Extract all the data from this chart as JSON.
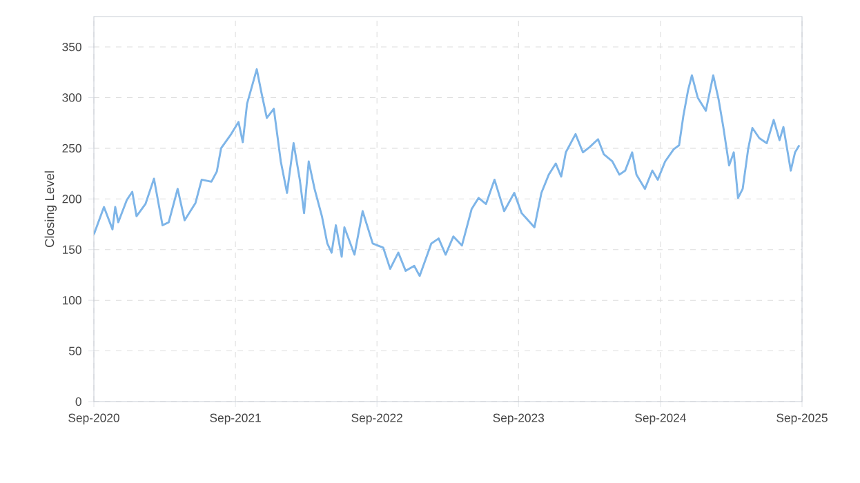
{
  "chart_data": {
    "type": "line",
    "ylabel": "Closing Level",
    "color": "#7eb5e8",
    "grid": true,
    "marker": "none",
    "line_style": "solid",
    "xlim": [
      "2020-09-01",
      "2025-09-01"
    ],
    "ylim": [
      0,
      380
    ],
    "xticks": [
      {
        "value": "2020-09-01",
        "label": "Sep-2020"
      },
      {
        "value": "2021-09-01",
        "label": "Sep-2021"
      },
      {
        "value": "2022-09-01",
        "label": "Sep-2022"
      },
      {
        "value": "2023-09-01",
        "label": "Sep-2023"
      },
      {
        "value": "2024-09-01",
        "label": "Sep-2024"
      },
      {
        "value": "2025-09-01",
        "label": "Sep-2025"
      }
    ],
    "yticks": [
      0,
      50,
      100,
      150,
      200,
      250,
      300,
      350
    ],
    "x": [
      "2020-09-01",
      "2020-09-27",
      "2020-10-19",
      "2020-10-26",
      "2020-11-03",
      "2020-11-25",
      "2020-12-09",
      "2020-12-20",
      "2021-01-12",
      "2021-02-03",
      "2021-02-25",
      "2021-03-13",
      "2021-04-05",
      "2021-04-23",
      "2021-05-21",
      "2021-06-06",
      "2021-07-01",
      "2021-07-15",
      "2021-07-26",
      "2021-08-21",
      "2021-09-09",
      "2021-09-20",
      "2021-10-01",
      "2021-10-26",
      "2021-11-07",
      "2021-11-21",
      "2021-12-09",
      "2021-12-27",
      "2022-01-12",
      "2022-01-29",
      "2022-02-14",
      "2022-02-25",
      "2022-03-09",
      "2022-03-24",
      "2022-04-12",
      "2022-04-26",
      "2022-05-07",
      "2022-05-18",
      "2022-06-02",
      "2022-06-09",
      "2022-07-05",
      "2022-07-26",
      "2022-08-21",
      "2022-09-17",
      "2022-10-05",
      "2022-10-26",
      "2022-11-14",
      "2022-12-06",
      "2022-12-20",
      "2023-01-19",
      "2023-02-07",
      "2023-02-25",
      "2023-03-17",
      "2023-04-08",
      "2023-05-03",
      "2023-05-21",
      "2023-06-09",
      "2023-07-01",
      "2023-07-26",
      "2023-08-21",
      "2023-09-09",
      "2023-10-12",
      "2023-10-30",
      "2023-11-18",
      "2023-12-06",
      "2023-12-20",
      "2024-01-01",
      "2024-01-26",
      "2024-02-14",
      "2024-03-02",
      "2024-03-24",
      "2024-04-08",
      "2024-04-30",
      "2024-05-18",
      "2024-06-02",
      "2024-06-20",
      "2024-07-01",
      "2024-07-23",
      "2024-08-11",
      "2024-08-25",
      "2024-09-13",
      "2024-10-05",
      "2024-10-19",
      "2024-10-30",
      "2024-11-11",
      "2024-11-21",
      "2024-12-06",
      "2024-12-27",
      "2025-01-15",
      "2025-01-29",
      "2025-02-10",
      "2025-02-25",
      "2025-03-09",
      "2025-03-20",
      "2025-04-01",
      "2025-04-15",
      "2025-04-26",
      "2025-05-14",
      "2025-06-02",
      "2025-06-20",
      "2025-07-05",
      "2025-07-15",
      "2025-08-03",
      "2025-08-14",
      "2025-08-25"
    ],
    "values": [
      165,
      192,
      170,
      192,
      177,
      199,
      207,
      183,
      195,
      220,
      174,
      177,
      210,
      179,
      196,
      219,
      217,
      227,
      250,
      264,
      276,
      256,
      294,
      328,
      305,
      280,
      289,
      237,
      206,
      255,
      219,
      186,
      237,
      210,
      183,
      156,
      147,
      174,
      143,
      172,
      145,
      188,
      156,
      152,
      131,
      147,
      129,
      134,
      124,
      156,
      161,
      145,
      163,
      154,
      190,
      201,
      195,
      219,
      188,
      206,
      186,
      172,
      206,
      224,
      235,
      222,
      246,
      264,
      246,
      251,
      259,
      244,
      237,
      224,
      228,
      246,
      224,
      210,
      228,
      219,
      237,
      249,
      253,
      282,
      307,
      322,
      300,
      287,
      322,
      298,
      271,
      233,
      246,
      201,
      210,
      249,
      270,
      260,
      255,
      278,
      258,
      271,
      228,
      246,
      253
    ]
  }
}
